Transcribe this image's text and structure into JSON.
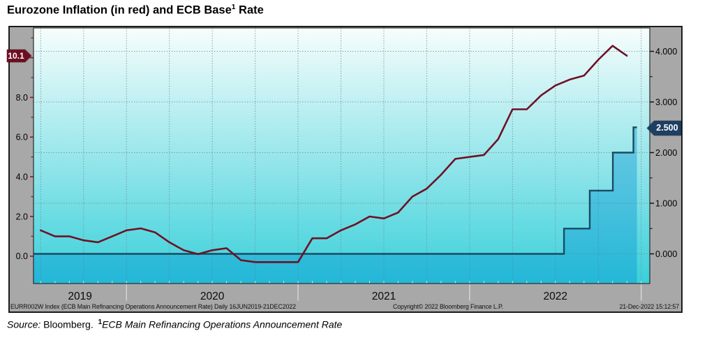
{
  "page": {
    "title": {
      "prefix": "Eurozone Inflation (in red) and ECB Base",
      "sup": "1",
      "suffix": " Rate"
    },
    "source": {
      "label": "Source:",
      "value": " Bloomberg. ",
      "sup": "1",
      "note": "ECB Main Refinancing Operations Announcement Rate"
    }
  },
  "chart_footer": {
    "left": "EURR002W Index (ECB Main Refinancing Operations Announcement Rate)  Daily 16JUN2019-21DEC2022",
    "center": "Copyright© 2022 Bloomberg Finance L.P.",
    "right": "21-Dec-2022 15:12:57"
  },
  "badges": {
    "last_inflation": "10.1",
    "last_rate": "2.500"
  },
  "colors": {
    "page_bg": "#ffffff",
    "frame_bg": "#a8a8a8",
    "frame_border": "#1c1c1c",
    "plot_bg_top": "#f7fdfc",
    "plot_bg_bottom": "#3ad0da",
    "plot_border": "#2b2b2b",
    "grid": "#6f8d98",
    "inflation_line": "#6e1124",
    "rate_line": "#1b4a66",
    "rate_fill": "rgba(0,145,210,0.38)",
    "left_tick": "#8b1522",
    "right_tick": "#111111",
    "badge_inflation_bg": "#6f0e22",
    "badge_rate_bg": "#1d3f63",
    "badge_text": "#ffffff",
    "year_separator": "#d8d8d8",
    "month_tick": "#eeeeee",
    "axis_text": "#000000"
  },
  "chart_data": {
    "type": "line",
    "title": "Eurozone Inflation (in red) and ECB Base¹ Rate",
    "x_axis": {
      "t_range": [
        2019.458,
        2023.05
      ],
      "data_range_label": "16JUN2019-21DEC2022",
      "frequency_label": "Daily",
      "year_labels": [
        {
          "label": "2019",
          "t_start": 2019.458,
          "t_end": 2020
        },
        {
          "label": "2020",
          "t_start": 2020,
          "t_end": 2021
        },
        {
          "label": "2021",
          "t_start": 2021,
          "t_end": 2022
        },
        {
          "label": "2022",
          "t_start": 2022,
          "t_end": 2023
        }
      ],
      "year_boundaries_t": [
        2020,
        2021,
        2022,
        2023
      ],
      "quarter_grid": {
        "t_first": 2019.5,
        "step": 0.25,
        "t_last": 2023.0
      },
      "month_tick_step_years": 0.083333
    },
    "left_axis": {
      "side": "left",
      "measures": "Eurozone inflation, % YoY (red line)",
      "range": [
        -1.38,
        11.5
      ],
      "tick_labels": [
        {
          "v": 0,
          "label": "0.0"
        },
        {
          "v": 2,
          "label": "2.0"
        },
        {
          "v": 4,
          "label": "4.0"
        },
        {
          "v": 6,
          "label": "6.0"
        },
        {
          "v": 8,
          "label": "8.0"
        }
      ],
      "minor_tick_step": 1,
      "minor_tick_max": 11,
      "last_value_badge": "10.1"
    },
    "right_axis": {
      "side": "right",
      "measures": "ECB base rate, % (blue step line)",
      "range": [
        -0.586,
        4.462
      ],
      "tick_labels": [
        {
          "v": 0,
          "label": "0.000"
        },
        {
          "v": 1,
          "label": "1.000"
        },
        {
          "v": 2,
          "label": "2.000"
        },
        {
          "v": 3,
          "label": "3.000"
        },
        {
          "v": 4,
          "label": "4.000"
        }
      ],
      "minor_tick_step": 0.5,
      "grid_values": [
        0,
        1,
        2,
        3,
        4
      ],
      "last_value_badge": "2.500"
    },
    "series": [
      {
        "name": "Eurozone Inflation (in red)",
        "type": "line",
        "axis": "left",
        "color": "#6e1124",
        "frequency": "monthly",
        "start_month": "2019-06",
        "end_month": "2022-11",
        "t_first": 2019.5,
        "values": [
          1.3,
          1.0,
          1.0,
          0.8,
          0.7,
          1.0,
          1.3,
          1.4,
          1.2,
          0.7,
          0.3,
          0.1,
          0.3,
          0.4,
          -0.2,
          -0.3,
          -0.3,
          -0.3,
          -0.3,
          0.9,
          0.9,
          1.3,
          1.6,
          2.0,
          1.9,
          2.2,
          3.0,
          3.4,
          4.1,
          4.9,
          5.0,
          5.1,
          5.9,
          7.4,
          7.4,
          8.1,
          8.6,
          8.9,
          9.1,
          9.9,
          10.6,
          10.1
        ]
      },
      {
        "name": "ECB Base Rate (ECB Main Refinancing Operations Announcement Rate)",
        "type": "step",
        "axis": "right",
        "color": "#1b4a66",
        "fill": "rgba(0,145,210,0.38)",
        "steps": [
          {
            "t": 2019.458,
            "value": 0.0
          },
          {
            "t": 2022.55,
            "value": 0.5
          },
          {
            "t": 2022.7,
            "value": 1.25
          },
          {
            "t": 2022.835,
            "value": 2.0
          },
          {
            "t": 2022.955,
            "value": 2.5
          }
        ],
        "t_end": 2022.975
      }
    ]
  }
}
